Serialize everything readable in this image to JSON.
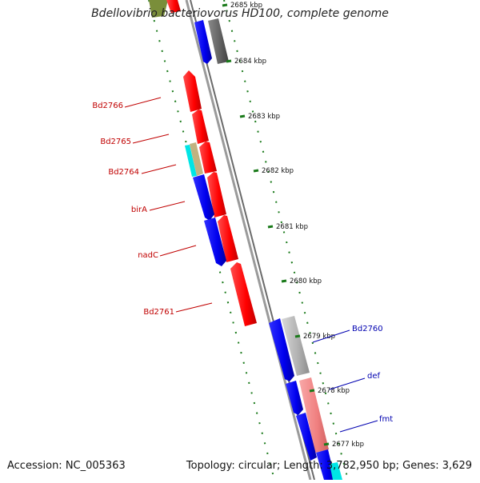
{
  "title": "Bdellovibrio bacteriovorus HD100, complete genome",
  "footer": {
    "accession": "Accession: NC_005363",
    "summary": "Topology: circular; Length: 3,782,950 bp; Genes: 3,629"
  },
  "ticks": [
    "2685 kbp",
    "2684 kbp",
    "2683 kbp",
    "2682 kbp",
    "2681 kbp",
    "2680 kbp",
    "2679 kbp",
    "2678 kbp",
    "2677 kbp"
  ],
  "genes_left": [
    "Bd2766",
    "Bd2765",
    "Bd2764",
    "birA",
    "nadC",
    "Bd2761"
  ],
  "genes_right": [
    "Bd2760",
    "def",
    "fmt"
  ],
  "colors": {
    "forward_gene": "#ff0000",
    "reverse_gene": "#0000ee",
    "grey_gene": "#b0b0b0",
    "dark_gene": "#606060",
    "cyan_gene": "#00e5e5",
    "tan_gene": "#c2b280",
    "olive_gene": "#6b8e23",
    "pink_gene": "#f08080",
    "backbone": "#888888",
    "dots": "#1a7a1a"
  }
}
